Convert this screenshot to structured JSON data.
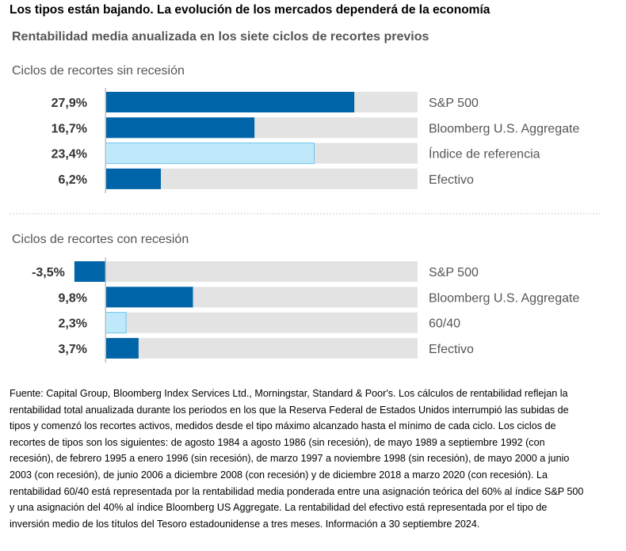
{
  "headline": "Los tipos están bajando. La evolución de los mercados dependerá de la economía",
  "colors": {
    "bar_primary": "#0065a8",
    "bar_highlight": "#bfe9fb",
    "bar_highlight_border": "#6cc4ec",
    "track": "#e3e3e3",
    "axis_line": "#bdbdbd",
    "divider": "#bdbdbd",
    "label_text": "#555555",
    "value_text": "#333333"
  },
  "chart_data": {
    "type": "bar",
    "orientation": "horizontal",
    "title": "Rentabilidad media anualizada en los siete ciclos de recortes previos",
    "value_format": "percent_comma",
    "panels": [
      {
        "title": "Ciclos de recortes sin recesión",
        "xlim": [
          -5,
          35
        ],
        "categories": [
          "S&P 500",
          "Bloomberg U.S. Aggregate",
          "Índice de referencia",
          "Efectivo"
        ],
        "values": [
          27.9,
          16.7,
          23.4,
          6.2
        ],
        "value_labels": [
          "27,9%",
          "16,7%",
          "23,4%",
          "6,2%"
        ],
        "highlight": [
          false,
          false,
          true,
          false
        ]
      },
      {
        "title": "Ciclos de recortes con recesión",
        "xlim": [
          -5,
          35
        ],
        "categories": [
          "S&P 500",
          "Bloomberg U.S. Aggregate",
          "60/40",
          "Efectivo"
        ],
        "values": [
          -3.5,
          9.8,
          2.3,
          3.7
        ],
        "value_labels": [
          "-3,5%",
          "9,8%",
          "2,3%",
          "3,7%"
        ],
        "highlight": [
          false,
          false,
          true,
          false
        ]
      }
    ]
  },
  "footnote": "Fuente: Capital Group, Bloomberg Index Services Ltd., Morningstar, Standard & Poor's. Los cálculos de rentabilidad reflejan la rentabilidad total anualizada durante los periodos en los que la Reserva Federal de Estados Unidos interrumpió las subidas de tipos y comenzó los recortes activos, medidos desde el tipo máximo alcanzado hasta el mínimo de cada ciclo. Los ciclos de recortes de tipos son los siguientes: de agosto 1984 a agosto 1986 (sin recesión), de mayo 1989 a septiembre 1992 (con recesión), de febrero 1995 a enero 1996 (sin recesión), de marzo 1997 a noviembre 1998 (sin recesión), de mayo 2000 a junio 2003 (con recesión), de junio 2006 a diciembre 2008 (con recesión) y de diciembre 2018 a marzo 2020 (con recesión). La rentabilidad 60/40 está representada por la rentabilidad media ponderada entre una asignación teórica del 60% al índice S&P 500 y una asignación del 40% al índice Bloomberg US Aggregate. La rentabilidad del efectivo está representada por el tipo de inversión medio de los títulos del Tesoro estadounidense a tres meses. Información a 30 septiembre 2024."
}
